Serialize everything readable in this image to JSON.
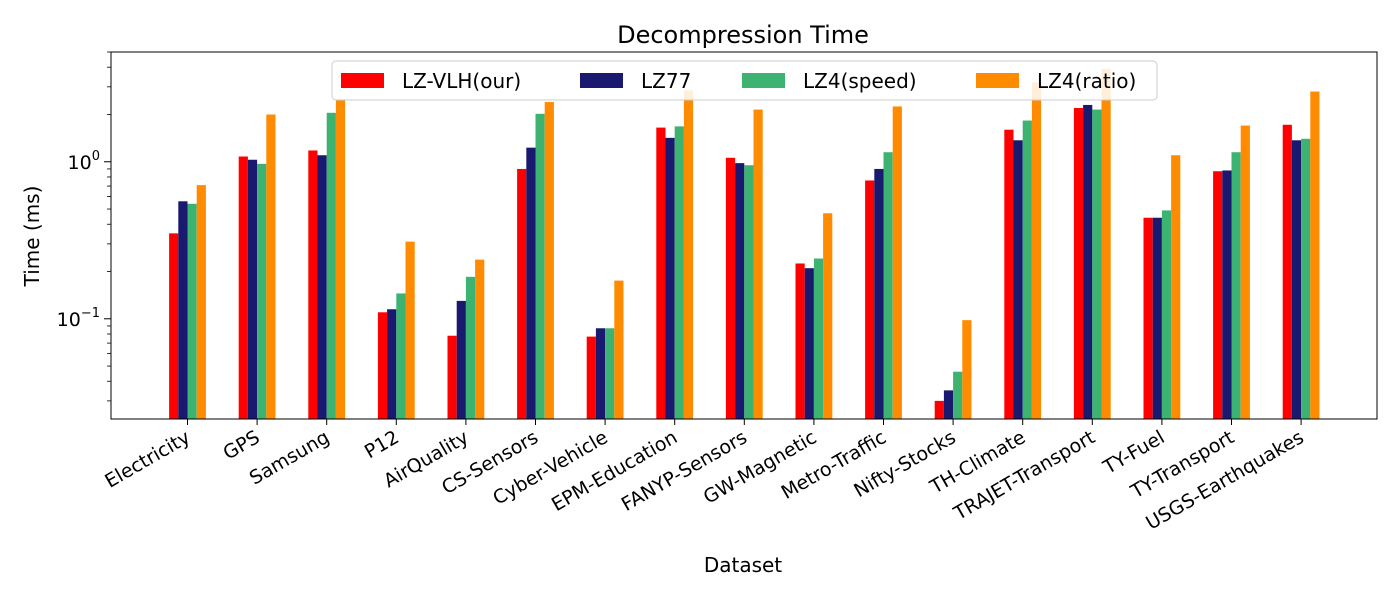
{
  "chart_data": {
    "type": "bar",
    "title": "Decompression Time",
    "xlabel": "Dataset",
    "ylabel": "Time (ms)",
    "yscale": "log",
    "ylim": [
      0.023,
      5.0
    ],
    "legend_placement": "top-center",
    "grid": false,
    "yticks": [
      {
        "value": 0.1,
        "base": "10",
        "exp": "−1"
      },
      {
        "value": 1.0,
        "base": "10",
        "exp": "0"
      }
    ],
    "categories": [
      "Electricity",
      "GPS",
      "Samsung",
      "P12",
      "AirQuality",
      "CS-Sensors",
      "Cyber-Vehicle",
      "EPM-Education",
      "FANYP-Sensors",
      "GW-Magnetic",
      "Metro-Traffic",
      "Nifty-Stocks",
      "TH-Climate",
      "TRAJET-Transport",
      "TY-Fuel",
      "TY-Transport",
      "USGS-Earthquakes"
    ],
    "series": [
      {
        "name": "LZ-VLH(our)",
        "color": "#ff0000",
        "values": [
          0.35,
          1.08,
          1.18,
          0.11,
          0.078,
          0.9,
          0.077,
          1.65,
          1.06,
          0.225,
          0.76,
          0.03,
          1.6,
          2.2,
          0.44,
          0.87,
          1.72
        ]
      },
      {
        "name": "LZ77",
        "color": "#191970",
        "values": [
          0.56,
          1.03,
          1.1,
          0.115,
          0.13,
          1.23,
          0.087,
          1.42,
          0.98,
          0.21,
          0.9,
          0.035,
          1.37,
          2.3,
          0.44,
          0.88,
          1.37
        ]
      },
      {
        "name": "LZ4(speed)",
        "color": "#3cb371",
        "values": [
          0.54,
          0.97,
          2.05,
          0.145,
          0.185,
          2.02,
          0.087,
          1.68,
          0.95,
          0.242,
          1.15,
          0.046,
          1.83,
          2.15,
          0.49,
          1.15,
          1.4
        ]
      },
      {
        "name": "LZ4(ratio)",
        "color": "#ff8c00",
        "values": [
          0.71,
          2.0,
          2.5,
          0.31,
          0.238,
          2.4,
          0.175,
          2.85,
          2.15,
          0.47,
          2.25,
          0.098,
          3.2,
          3.9,
          1.1,
          1.7,
          2.8
        ]
      }
    ]
  }
}
